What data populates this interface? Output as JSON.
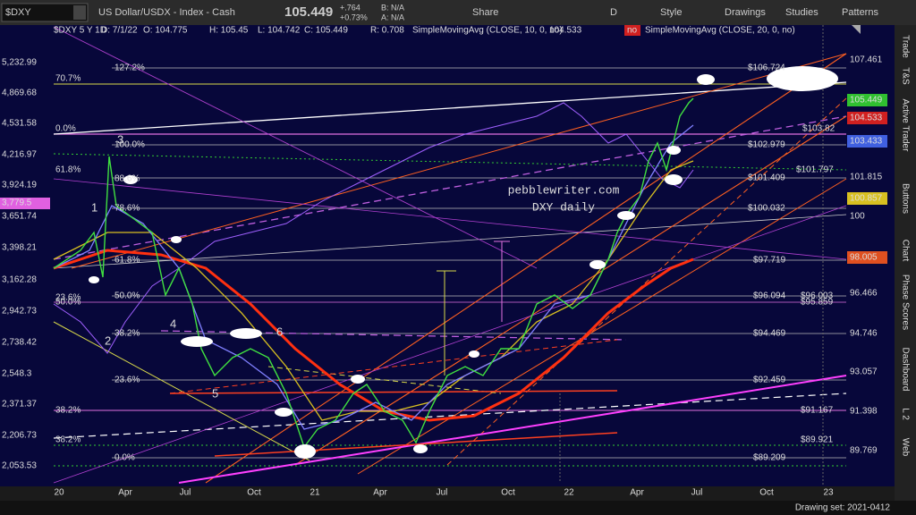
{
  "toolbar": {
    "symbol": "$DXY",
    "description": "US Dollar/USDX - Index - Cash",
    "last": "105.449",
    "change": "+.764",
    "change_pct": "+0.73%",
    "bid": "B: N/A",
    "ask": "A: N/A",
    "buttons": [
      "Share",
      "D",
      "Style",
      "Drawings",
      "Studies",
      "Patterns"
    ]
  },
  "legend": {
    "symbol": "$DXY 5 Y 1D",
    "date": "D: 7/1/22",
    "open": "O: 104.775",
    "high": "H: 105.45",
    "low": "L: 104.742",
    "close": "C: 105.449",
    "range": "R: 0.708",
    "study1": "SimpleMovingAvg (CLOSE, 10, 0, no)",
    "study1_value": "104.533",
    "study1_flag": "no",
    "study2": "SimpleMovingAvg (CLOSE, 20, 0, no)"
  },
  "left_axis": [
    "5,232.99",
    "4,869.68",
    "4,531.58",
    "4,216.97",
    "3,924.19",
    "3,779.5",
    "3,651.74",
    "3,398.21",
    "3,162.28",
    "2,942.73",
    "2,738.42",
    "2,548.3",
    "2,371.37",
    "2,206.73",
    "2,053.53"
  ],
  "right_axis": [
    "107.461",
    "105.449",
    "104.533",
    "103.433",
    "101.815",
    "100.857",
    "100",
    "98.005",
    "96.466",
    "94.746",
    "93.057",
    "91.398",
    "89.769"
  ],
  "x_axis": [
    "20",
    "Apr",
    "Jul",
    "Oct",
    "21",
    "Apr",
    "Jul",
    "Oct",
    "22",
    "Apr",
    "Jul",
    "Oct",
    "23"
  ],
  "fib_labels": [
    "127.2%",
    "70.7%",
    "0.0%",
    "100.0%",
    "61.8%",
    "88.6%",
    "78.6%",
    "61.8%",
    "50.0%",
    "23.6%",
    "50.0%",
    "38.2%",
    "23.6%",
    "38.2%",
    "38.2%",
    "0.0%"
  ],
  "price_labels": [
    "$106.724",
    "$103.82",
    "$102.979",
    "$101.797",
    "$101.409",
    "$100.032",
    "$97.719",
    "$96.094",
    "$96.003",
    "$95.859",
    "$94.469",
    "$92.459",
    "$91.167",
    "$89.921",
    "$89.209"
  ],
  "wave_labels": [
    "3",
    "1",
    "2",
    "4",
    "5",
    "6"
  ],
  "watermark": [
    "pebblewriter.com",
    "DXY daily"
  ],
  "sidebar": [
    "Trade",
    "T&S",
    "Active Trader",
    "Buttons",
    "Chart",
    "Phase Scores",
    "Dashboard",
    "L 2",
    "Web"
  ],
  "status": "Drawing set: 2021-0412"
}
